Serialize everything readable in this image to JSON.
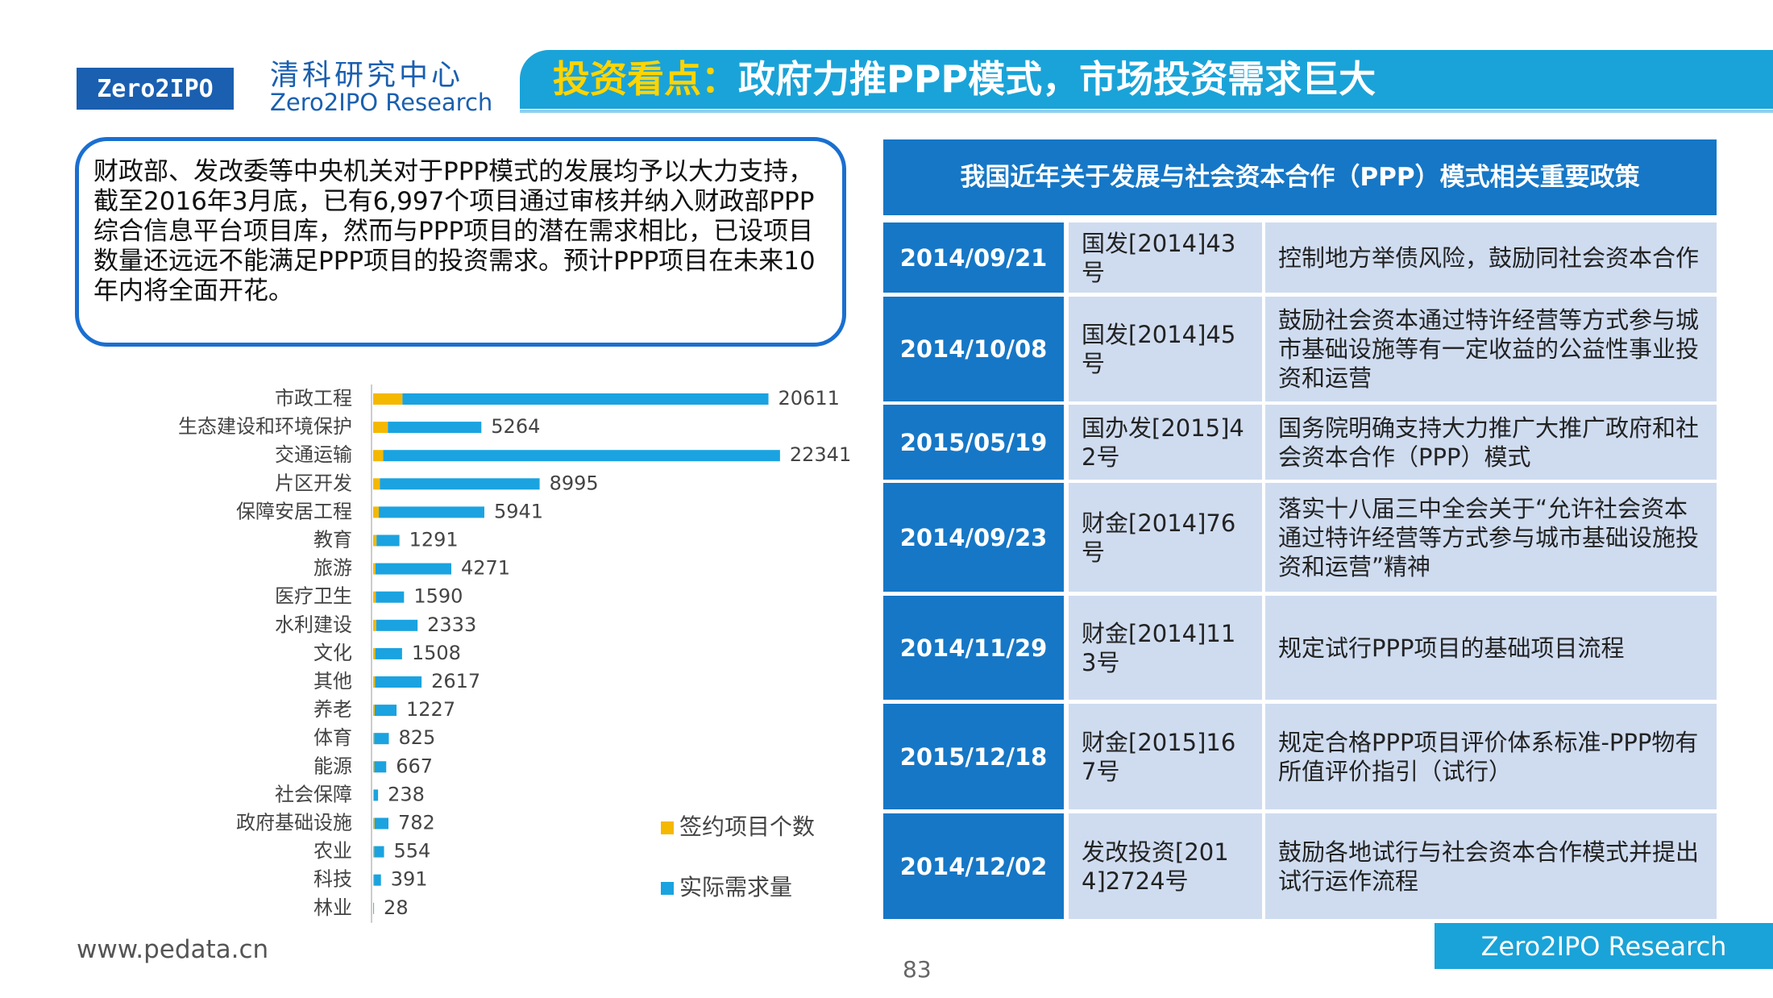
{
  "header": {
    "org_cn": "清科研究中心",
    "org_en": "Zero2IPO Research",
    "logo": "Zero2IPO",
    "title_highlight": "投资看点：",
    "title": "政府力推PPP模式，市场投资需求巨大"
  },
  "summary": "财政部、发改委等中央机关对于PPP模式的发展均予以大力支持，截至2016年3月底，已有6,997个项目通过审核并纳入财政部PPP综合信息平台项目库，然而与PPP项目的潜在需求相比，已设项目数量还远远不能满足PPP项目的投资需求。预计PPP项目在未来10年内将全面开花。",
  "chart_data": {
    "type": "stacked_barh",
    "categories": [
      "市政工程",
      "生态建设和环境保护",
      "交通运输",
      "片区开发",
      "保障安居工程",
      "教育",
      "旅游",
      "医疗卫生",
      "水利建设",
      "文化",
      "其他",
      "养老",
      "体育",
      "能源",
      "社会保障",
      "政府基础设施",
      "农业",
      "科技",
      "林业"
    ],
    "series": [
      {
        "name": "签约项目个数",
        "color": "#f5b800",
        "values": [
          1650,
          830,
          570,
          380,
          320,
          190,
          130,
          150,
          170,
          120,
          110,
          90,
          60,
          70,
          40,
          80,
          60,
          50,
          20
        ]
      },
      {
        "name": "实际需求量",
        "color": "#1aa3e0",
        "values": [
          20611,
          5264,
          22341,
          8995,
          5941,
          1291,
          4271,
          1590,
          2333,
          1508,
          2617,
          1227,
          825,
          667,
          238,
          782,
          554,
          391,
          28
        ]
      }
    ],
    "xlim": [
      0,
      28000
    ],
    "grid": false
  },
  "table": {
    "header": "我国近年关于发展与社会资本合作（PPP）模式相关重要政策",
    "rows": [
      [
        "2014/09/21",
        "国发[2014]43号",
        "控制地方举债风险，鼓励同社会资本合作"
      ],
      [
        "2014/10/08",
        "国发[2014]45号",
        "鼓励社会资本通过特许经营等方式参与城市基础设施等有一定收益的公益性事业投资和运营"
      ],
      [
        "2015/05/19",
        "国办发[2015]42号",
        "国务院明确支持大力推广大推广政府和社会资本合作（PPP）模式"
      ],
      [
        "2014/09/23",
        "财金[2014]76号",
        "落实十八届三中全会关于“允许社会资本通过特许经营等方式参与城市基础设施投资和运营”精神"
      ],
      [
        "2014/11/29",
        "财金[2014]113号",
        "规定试行PPP项目的基础项目流程"
      ],
      [
        "2015/12/18",
        "财金[2015]167号",
        "规定合格PPP项目评价体系标准-PPP物有所值评价指引（试行）"
      ],
      [
        "2014/12/02",
        "发改投资[2014]2724号",
        "鼓励各地试行与社会资本合作模式并提出试行运作流程"
      ]
    ]
  },
  "footer": {
    "url": "www.pedata.cn",
    "page": "83",
    "brand": "Zero2IPO Research"
  }
}
